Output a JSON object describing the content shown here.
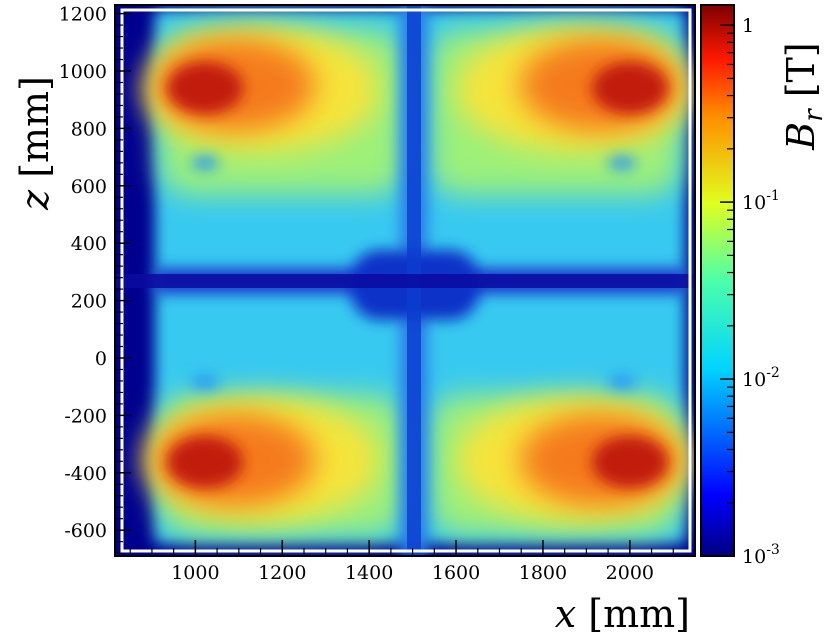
{
  "chart_data": {
    "type": "heatmap",
    "title": "",
    "xlabel": {
      "var": "x",
      "unit": "[mm]"
    },
    "ylabel": {
      "var": "z",
      "unit": "[mm]"
    },
    "zlabel": {
      "var": "B",
      "sub": "r",
      "unit": "[T]"
    },
    "xlim": [
      815,
      2150
    ],
    "ylim": [
      -690,
      1230
    ],
    "zlim": [
      0.001,
      1.3
    ],
    "zscale": "log",
    "colormap": "jet",
    "grid": false,
    "x_ticks": [
      "1000",
      "1200",
      "1400",
      "1600",
      "1800",
      "2000"
    ],
    "y_ticks": [
      "-600",
      "-400",
      "-200",
      "0",
      "200",
      "400",
      "600",
      "800",
      "1000",
      "1200"
    ],
    "z_ticks": [
      {
        "base": "10",
        "exp": "-3"
      },
      {
        "base": "10",
        "exp": "-2"
      },
      {
        "base": "10",
        "exp": "-1"
      },
      {
        "base": "1",
        "exp": ""
      }
    ],
    "coil_hotspots": [
      {
        "x": 1010,
        "z": 930,
        "B": 1.0
      },
      {
        "x": 1990,
        "z": 930,
        "B": 1.0
      },
      {
        "x": 1010,
        "z": -370,
        "B": 1.0
      },
      {
        "x": 1990,
        "z": -370,
        "B": 1.0
      }
    ],
    "field_region": {
      "x": [
        900,
        2100
      ],
      "z": [
        -650,
        1210
      ]
    },
    "background_B": 0.001
  }
}
